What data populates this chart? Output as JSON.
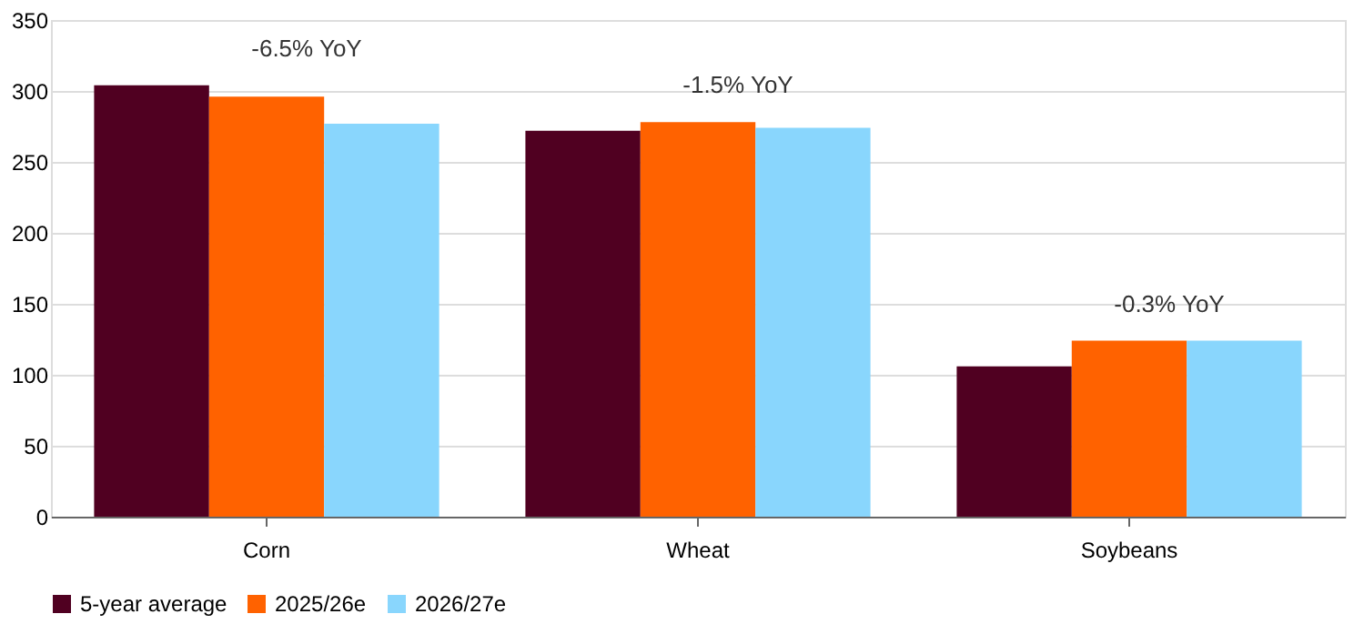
{
  "chart_data": {
    "type": "bar",
    "categories": [
      "Corn",
      "Wheat",
      "Soybeans"
    ],
    "series": [
      {
        "name": "5-year average",
        "color": "#500021",
        "values": [
          304,
          272,
          106
        ]
      },
      {
        "name": "2025/26e",
        "color": "#ff6200",
        "values": [
          296,
          278,
          124
        ]
      },
      {
        "name": "2026/27e",
        "color": "#89d6fd",
        "values": [
          277,
          274,
          124
        ]
      }
    ],
    "ylim": [
      0,
      350
    ],
    "yticks": [
      0,
      50,
      100,
      150,
      200,
      250,
      300,
      350
    ],
    "grid": "y",
    "legend": "bottom",
    "annotations": [
      "-6.5% YoY",
      "-1.5% YoY",
      "-0.3% YoY"
    ]
  }
}
